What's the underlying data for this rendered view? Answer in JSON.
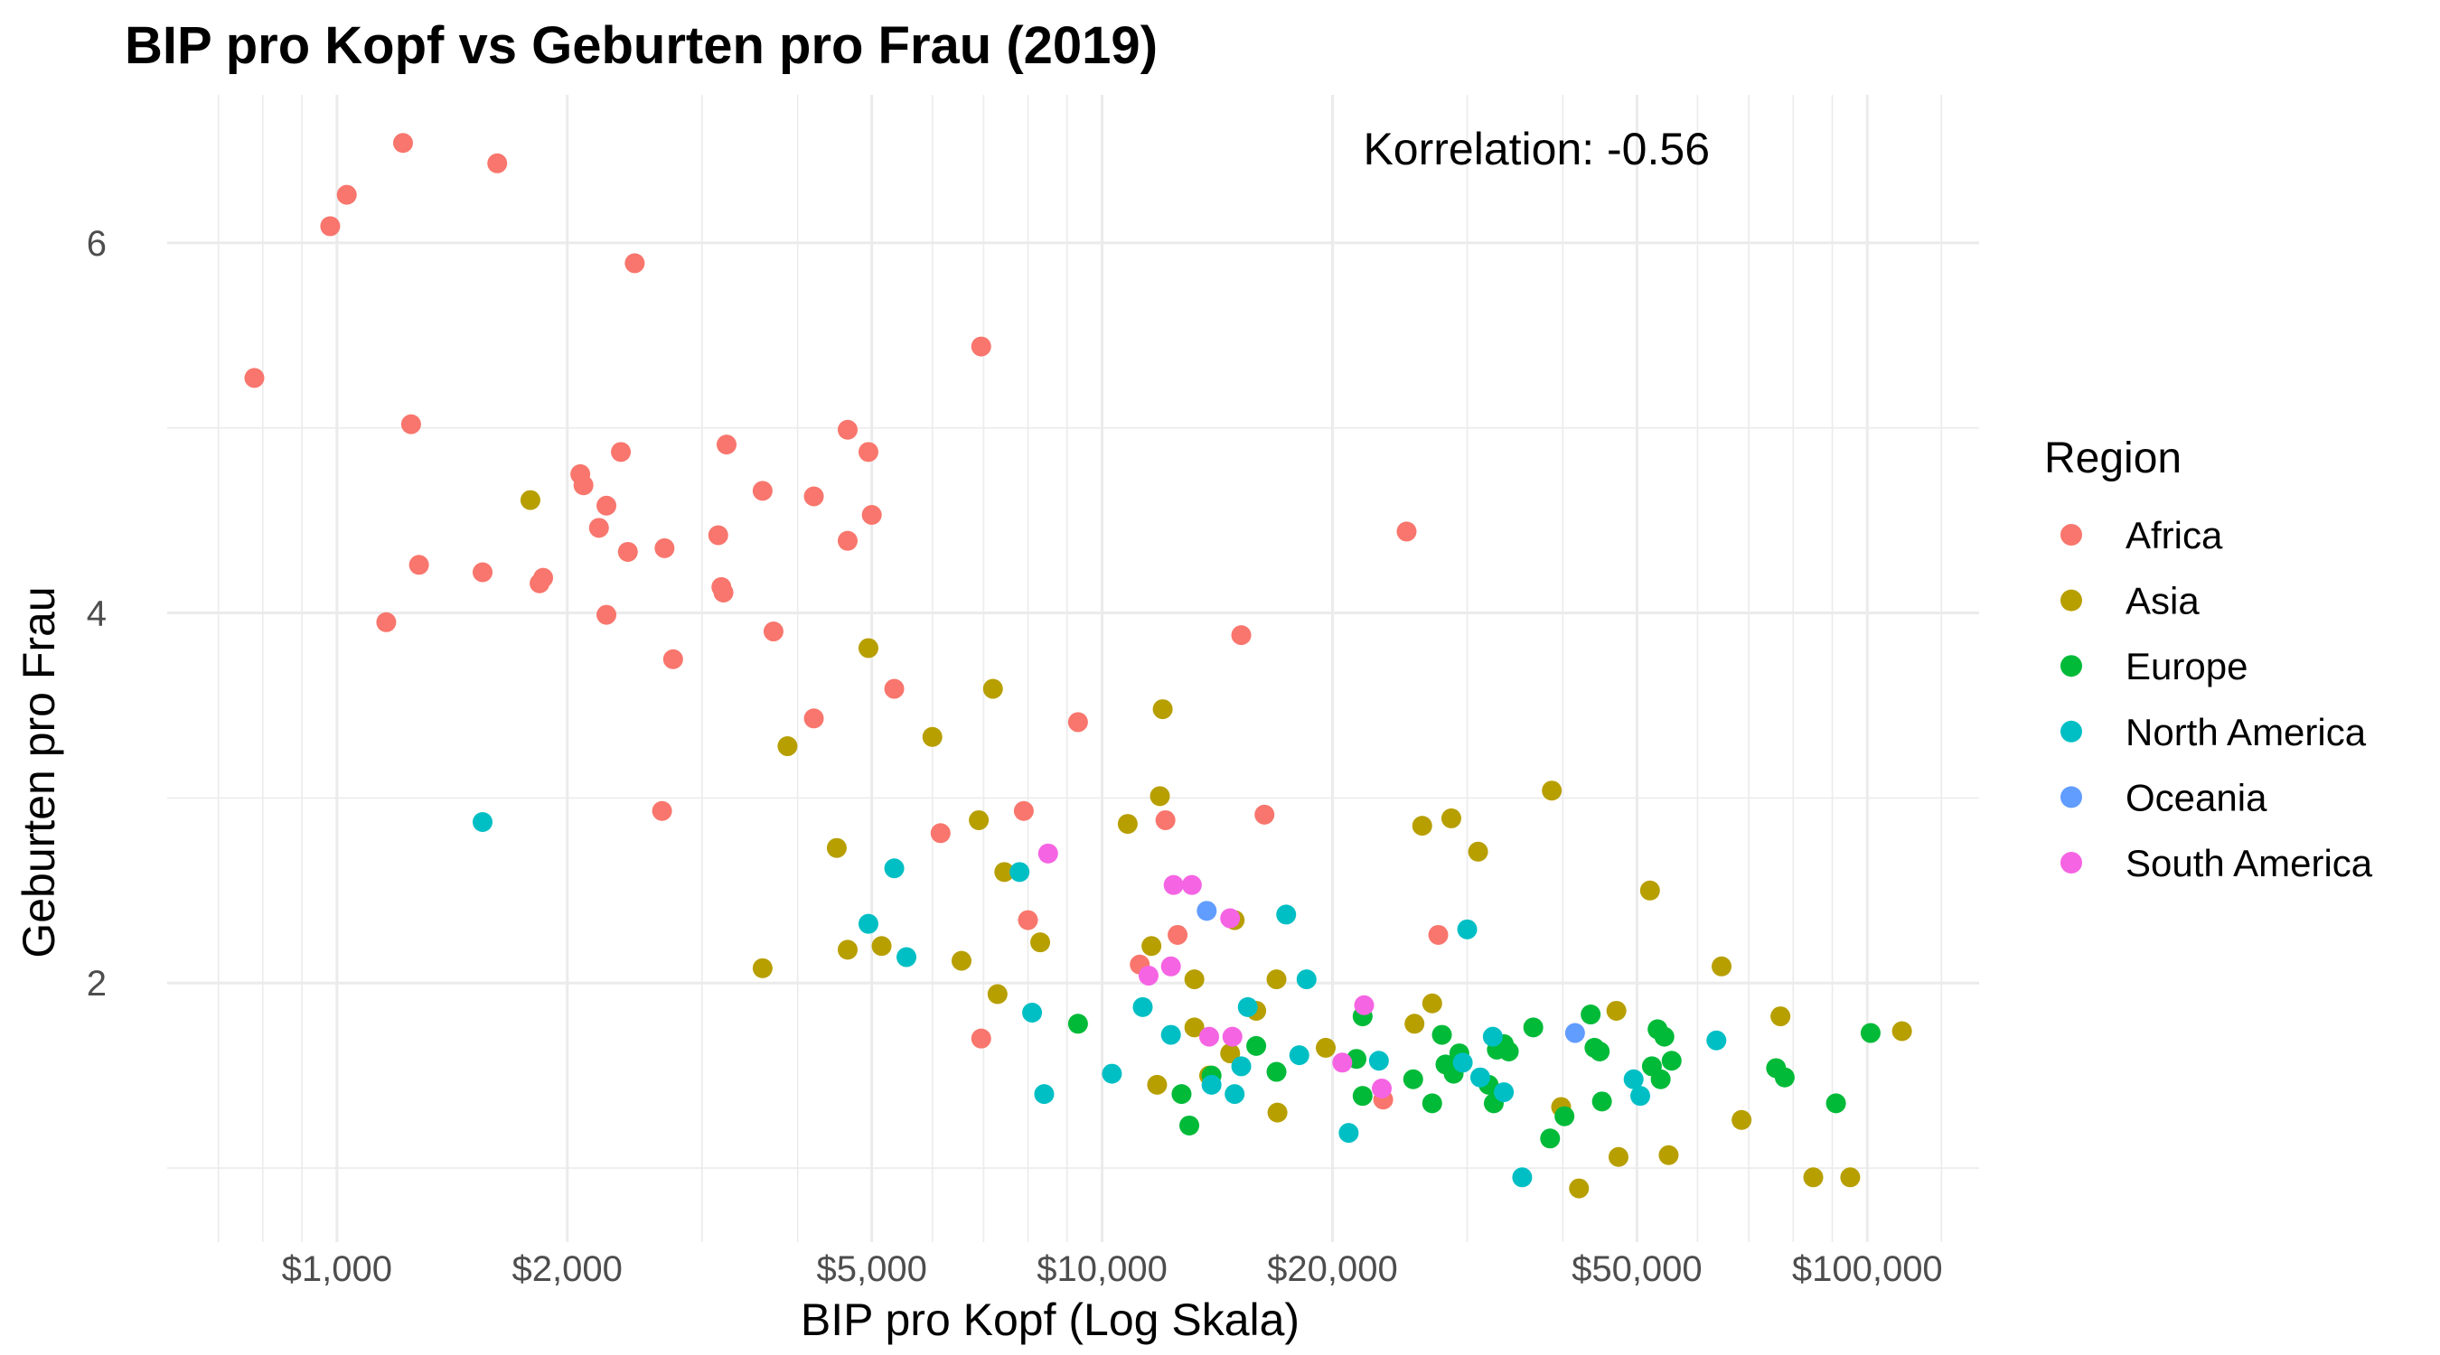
{
  "chart_data": {
    "type": "scatter",
    "title": "BIP pro Kopf vs Geburten pro Frau (2019)",
    "xlabel": "BIP pro Kopf (Log Skala)",
    "ylabel": "Geburten pro Frau",
    "x_scale": "log10",
    "xlim": [
      600,
      140000
    ],
    "ylim": [
      0.6,
      6.8
    ],
    "x_ticks": [
      1000,
      2000,
      5000,
      10000,
      20000,
      50000,
      100000
    ],
    "x_tick_labels": [
      "$1,000",
      "$2,000",
      "$5,000",
      "$10,000",
      "$20,000",
      "$50,000",
      "$100,000"
    ],
    "y_ticks": [
      2,
      4,
      6
    ],
    "y_tick_labels": [
      "2",
      "4",
      "6"
    ],
    "grid": true,
    "legend_title": "Region",
    "legend_position": "right",
    "annotation": "Korrelation: -0.56",
    "series": [
      {
        "name": "Africa",
        "color": "#F8766D",
        "points": [
          [
            780,
            5.27
          ],
          [
            980,
            6.09
          ],
          [
            1030,
            6.26
          ],
          [
            1160,
            3.95
          ],
          [
            1220,
            6.54
          ],
          [
            1250,
            5.02
          ],
          [
            1280,
            4.26
          ],
          [
            1550,
            4.22
          ],
          [
            1620,
            6.43
          ],
          [
            1840,
            4.16
          ],
          [
            1860,
            4.19
          ],
          [
            2080,
            4.75
          ],
          [
            2100,
            4.69
          ],
          [
            2200,
            4.46
          ],
          [
            2250,
            3.99
          ],
          [
            2250,
            4.58
          ],
          [
            2350,
            4.87
          ],
          [
            2400,
            4.33
          ],
          [
            2450,
            5.89
          ],
          [
            2660,
            2.93
          ],
          [
            2680,
            4.35
          ],
          [
            2750,
            3.75
          ],
          [
            3150,
            4.42
          ],
          [
            3180,
            4.14
          ],
          [
            3200,
            4.11
          ],
          [
            3230,
            4.91
          ],
          [
            3600,
            4.66
          ],
          [
            3720,
            3.9
          ],
          [
            4200,
            3.43
          ],
          [
            4200,
            4.63
          ],
          [
            4650,
            4.99
          ],
          [
            4650,
            4.39
          ],
          [
            4950,
            4.87
          ],
          [
            5000,
            4.53
          ],
          [
            5350,
            3.59
          ],
          [
            6150,
            2.81
          ],
          [
            6950,
            5.44
          ],
          [
            6950,
            1.7
          ],
          [
            7900,
            2.93
          ],
          [
            8000,
            2.34
          ],
          [
            9300,
            3.41
          ],
          [
            11200,
            2.1
          ],
          [
            12100,
            2.88
          ],
          [
            12550,
            2.26
          ],
          [
            15200,
            3.88
          ],
          [
            16300,
            2.91
          ],
          [
            23300,
            1.37
          ],
          [
            25000,
            4.44
          ],
          [
            27500,
            2.26
          ]
        ]
      },
      {
        "name": "Asia",
        "color": "#B79F00",
        "points": [
          [
            1790,
            4.61
          ],
          [
            3600,
            2.08
          ],
          [
            3880,
            3.28
          ],
          [
            4500,
            2.73
          ],
          [
            4650,
            2.18
          ],
          [
            4950,
            3.81
          ],
          [
            5150,
            2.2
          ],
          [
            6000,
            3.33
          ],
          [
            6550,
            2.12
          ],
          [
            6900,
            2.88
          ],
          [
            7200,
            3.59
          ],
          [
            7300,
            1.94
          ],
          [
            7450,
            2.6
          ],
          [
            8300,
            2.22
          ],
          [
            10800,
            2.86
          ],
          [
            11600,
            2.2
          ],
          [
            11800,
            1.45
          ],
          [
            11900,
            3.01
          ],
          [
            12000,
            3.48
          ],
          [
            13200,
            2.02
          ],
          [
            13200,
            1.76
          ],
          [
            13800,
            1.5
          ],
          [
            14700,
            1.62
          ],
          [
            14900,
            2.34
          ],
          [
            15900,
            1.85
          ],
          [
            16900,
            2.02
          ],
          [
            16950,
            1.3
          ],
          [
            19600,
            1.65
          ],
          [
            25600,
            1.78
          ],
          [
            26200,
            2.85
          ],
          [
            27000,
            1.89
          ],
          [
            28600,
            2.89
          ],
          [
            31000,
            2.71
          ],
          [
            38700,
            3.04
          ],
          [
            39800,
            1.33
          ],
          [
            42000,
            0.89
          ],
          [
            47000,
            1.85
          ],
          [
            47300,
            1.06
          ],
          [
            52000,
            2.5
          ],
          [
            55000,
            1.07
          ],
          [
            64500,
            2.09
          ],
          [
            68500,
            1.26
          ],
          [
            77000,
            1.82
          ],
          [
            85000,
            0.95
          ],
          [
            95000,
            0.95
          ],
          [
            111000,
            1.74
          ]
        ]
      },
      {
        "name": "Europe",
        "color": "#00BA38",
        "points": [
          [
            9300,
            1.78
          ],
          [
            12700,
            1.4
          ],
          [
            13000,
            1.23
          ],
          [
            13900,
            1.5
          ],
          [
            15900,
            1.66
          ],
          [
            16900,
            1.52
          ],
          [
            21500,
            1.59
          ],
          [
            21900,
            1.82
          ],
          [
            21900,
            1.39
          ],
          [
            25500,
            1.48
          ],
          [
            27000,
            1.35
          ],
          [
            27800,
            1.72
          ],
          [
            28100,
            1.56
          ],
          [
            28800,
            1.51
          ],
          [
            29300,
            1.62
          ],
          [
            32000,
            1.45
          ],
          [
            32500,
            1.35
          ],
          [
            32800,
            1.64
          ],
          [
            33500,
            1.67
          ],
          [
            34000,
            1.63
          ],
          [
            36600,
            1.76
          ],
          [
            38500,
            1.16
          ],
          [
            40200,
            1.28
          ],
          [
            43500,
            1.83
          ],
          [
            44000,
            1.65
          ],
          [
            44700,
            1.63
          ],
          [
            45000,
            1.36
          ],
          [
            52300,
            1.55
          ],
          [
            53200,
            1.75
          ],
          [
            53700,
            1.48
          ],
          [
            54300,
            1.71
          ],
          [
            55500,
            1.58
          ],
          [
            76000,
            1.54
          ],
          [
            78000,
            1.49
          ],
          [
            91000,
            1.35
          ],
          [
            101000,
            1.73
          ]
        ]
      },
      {
        "name": "North America",
        "color": "#00BFC4",
        "points": [
          [
            1550,
            2.87
          ],
          [
            4950,
            2.32
          ],
          [
            5350,
            2.62
          ],
          [
            5550,
            2.14
          ],
          [
            7800,
            2.6
          ],
          [
            8100,
            1.84
          ],
          [
            8400,
            1.4
          ],
          [
            10300,
            1.51
          ],
          [
            11300,
            1.87
          ],
          [
            12300,
            1.72
          ],
          [
            13900,
            1.45
          ],
          [
            14900,
            1.4
          ],
          [
            15200,
            1.55
          ],
          [
            15500,
            1.87
          ],
          [
            17400,
            2.37
          ],
          [
            18100,
            1.61
          ],
          [
            18500,
            2.02
          ],
          [
            21000,
            1.19
          ],
          [
            23000,
            1.58
          ],
          [
            29600,
            1.57
          ],
          [
            30000,
            2.29
          ],
          [
            31200,
            1.49
          ],
          [
            33500,
            1.41
          ],
          [
            35400,
            0.95
          ],
          [
            32400,
            1.71
          ],
          [
            49500,
            1.48
          ],
          [
            50500,
            1.39
          ],
          [
            63500,
            1.69
          ]
        ]
      },
      {
        "name": "Oceania",
        "color": "#619CFF",
        "points": [
          [
            13700,
            2.39
          ],
          [
            41500,
            1.73
          ]
        ]
      },
      {
        "name": "South America",
        "color": "#F564E3",
        "points": [
          [
            8500,
            2.7
          ],
          [
            11500,
            2.04
          ],
          [
            12300,
            2.09
          ],
          [
            12400,
            2.53
          ],
          [
            13100,
            2.53
          ],
          [
            13800,
            1.71
          ],
          [
            14700,
            2.35
          ],
          [
            14800,
            1.71
          ],
          [
            20600,
            1.57
          ],
          [
            22000,
            1.88
          ],
          [
            23200,
            1.43
          ]
        ]
      }
    ]
  }
}
